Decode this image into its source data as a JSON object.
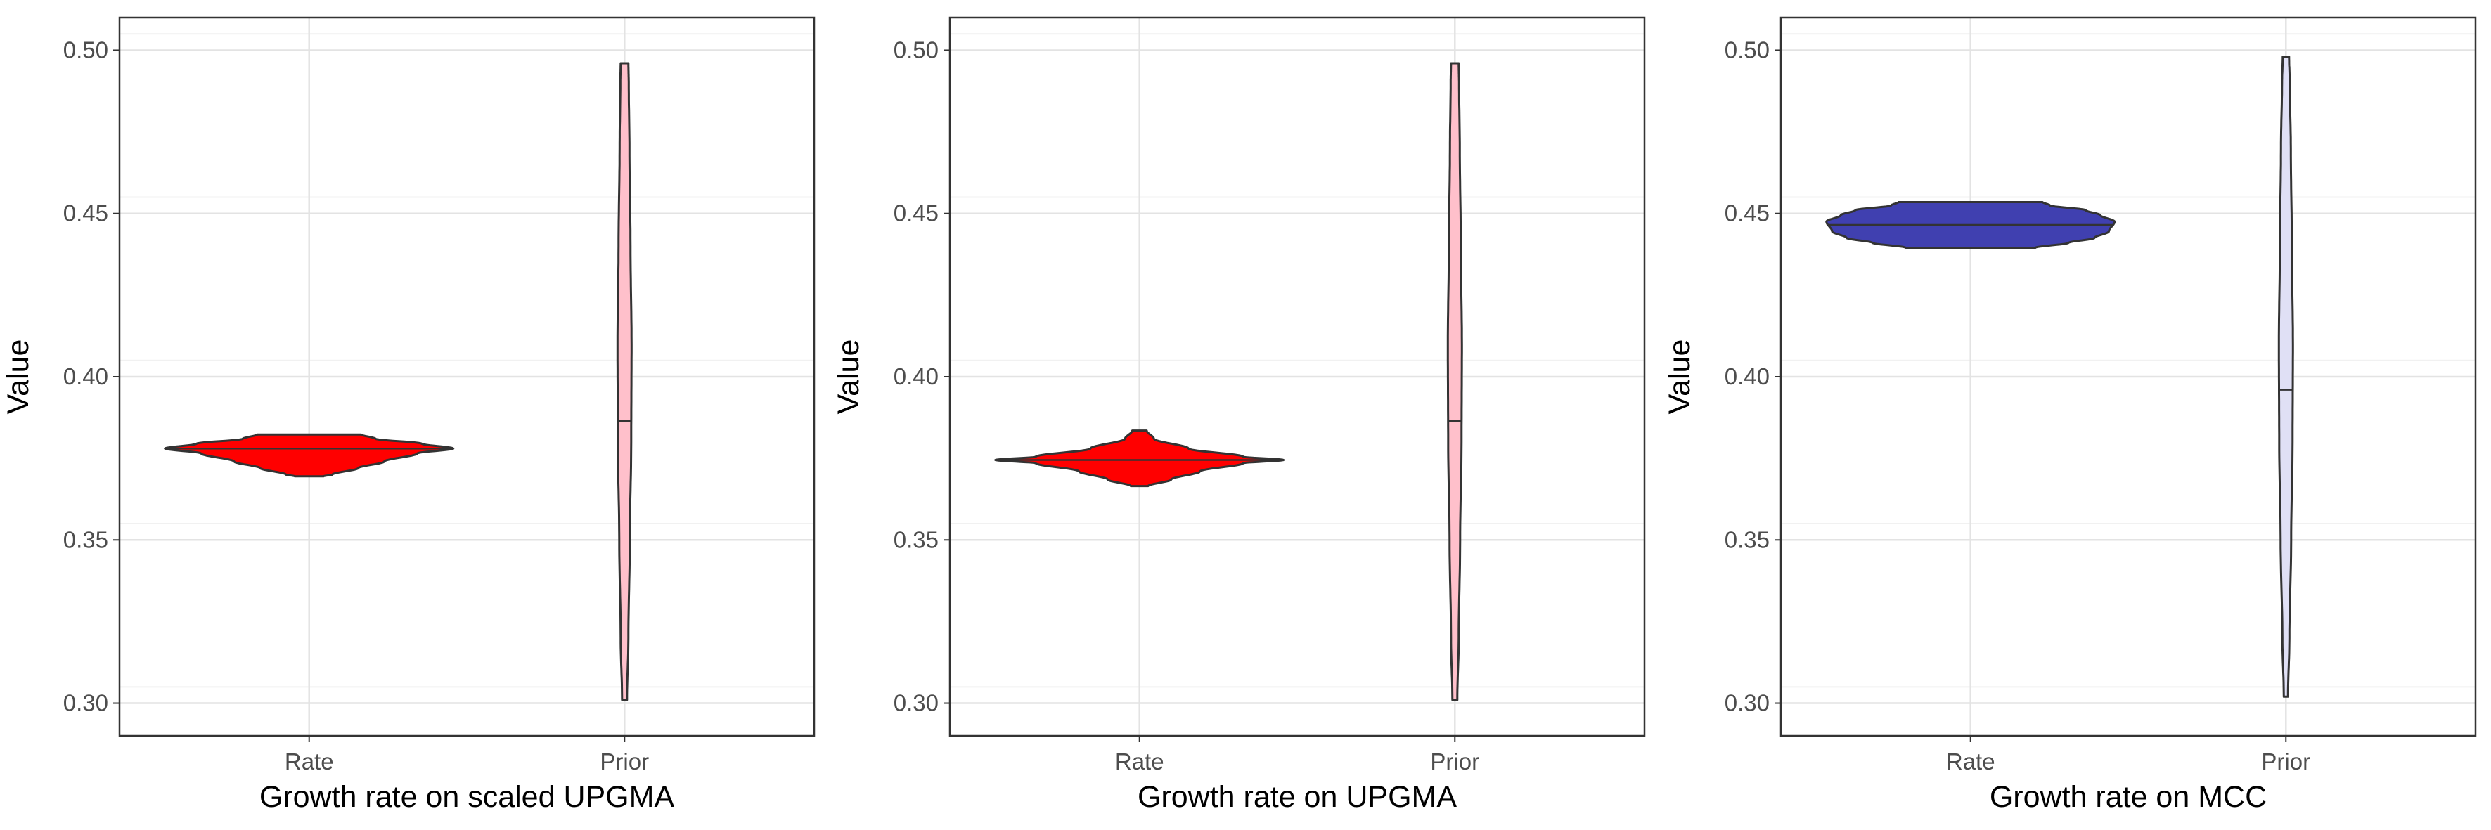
{
  "chart_data": [
    {
      "type": "violin",
      "xlabel": "Growth rate on scaled UPGMA",
      "ylabel": "Value",
      "ylim": [
        0.29,
        0.51
      ],
      "yticks": [
        "0.30",
        "0.35",
        "0.40",
        "0.45",
        "0.50"
      ],
      "grid": true,
      "categories": [
        "Rate",
        "Prior"
      ],
      "violins": [
        {
          "category": "Rate",
          "color": "#ff0000",
          "min": 0.3695,
          "max": 0.3823,
          "median": 0.378,
          "profile": [
            [
              0.3695,
              0.1
            ],
            [
              0.37,
              0.16
            ],
            [
              0.372,
              0.34
            ],
            [
              0.374,
              0.52
            ],
            [
              0.3765,
              0.75
            ],
            [
              0.378,
              1.0
            ],
            [
              0.3795,
              0.78
            ],
            [
              0.381,
              0.46
            ],
            [
              0.3823,
              0.36
            ]
          ]
        },
        {
          "category": "Prior",
          "color": "#ffc0cb",
          "min": 0.301,
          "max": 0.496,
          "median": 0.3865,
          "profile": [
            [
              0.301,
              0.35
            ],
            [
              0.32,
              0.55
            ],
            [
              0.35,
              0.75
            ],
            [
              0.38,
              0.95
            ],
            [
              0.41,
              1.0
            ],
            [
              0.44,
              0.85
            ],
            [
              0.47,
              0.7
            ],
            [
              0.49,
              0.6
            ],
            [
              0.496,
              0.55
            ]
          ]
        }
      ]
    },
    {
      "type": "violin",
      "xlabel": "Growth rate on UPGMA",
      "ylabel": "Value",
      "ylim": [
        0.29,
        0.51
      ],
      "yticks": [
        "0.30",
        "0.35",
        "0.40",
        "0.45",
        "0.50"
      ],
      "grid": true,
      "categories": [
        "Rate",
        "Prior"
      ],
      "violins": [
        {
          "category": "Rate",
          "color": "#ff0000",
          "min": 0.3665,
          "max": 0.3835,
          "median": 0.3745,
          "profile": [
            [
              0.3665,
              0.06
            ],
            [
              0.3685,
              0.22
            ],
            [
              0.371,
              0.42
            ],
            [
              0.3735,
              0.72
            ],
            [
              0.3745,
              1.0
            ],
            [
              0.3755,
              0.72
            ],
            [
              0.378,
              0.34
            ],
            [
              0.381,
              0.1
            ],
            [
              0.3835,
              0.05
            ]
          ]
        },
        {
          "category": "Prior",
          "color": "#ffc0cb",
          "min": 0.301,
          "max": 0.496,
          "median": 0.3865,
          "profile": [
            [
              0.301,
              0.35
            ],
            [
              0.32,
              0.55
            ],
            [
              0.35,
              0.75
            ],
            [
              0.38,
              0.95
            ],
            [
              0.41,
              1.0
            ],
            [
              0.44,
              0.85
            ],
            [
              0.47,
              0.7
            ],
            [
              0.49,
              0.6
            ],
            [
              0.496,
              0.55
            ]
          ]
        }
      ]
    },
    {
      "type": "violin",
      "xlabel": "Growth rate on MCC",
      "ylabel": "Value",
      "ylim": [
        0.29,
        0.51
      ],
      "yticks": [
        "0.30",
        "0.35",
        "0.40",
        "0.45",
        "0.50"
      ],
      "grid": true,
      "categories": [
        "Rate",
        "Prior"
      ],
      "violins": [
        {
          "category": "Rate",
          "color": "#4040b0",
          "min": 0.4395,
          "max": 0.4535,
          "median": 0.4465,
          "profile": [
            [
              0.4395,
              0.45
            ],
            [
              0.441,
              0.68
            ],
            [
              0.4425,
              0.86
            ],
            [
              0.4445,
              0.96
            ],
            [
              0.4475,
              1.0
            ],
            [
              0.4495,
              0.9
            ],
            [
              0.451,
              0.8
            ],
            [
              0.4525,
              0.55
            ],
            [
              0.4535,
              0.5
            ]
          ]
        },
        {
          "category": "Prior",
          "color": "#e0e0f5",
          "min": 0.302,
          "max": 0.498,
          "median": 0.396,
          "profile": [
            [
              0.302,
              0.3
            ],
            [
              0.32,
              0.5
            ],
            [
              0.35,
              0.75
            ],
            [
              0.38,
              0.95
            ],
            [
              0.41,
              1.0
            ],
            [
              0.44,
              0.85
            ],
            [
              0.47,
              0.7
            ],
            [
              0.49,
              0.55
            ],
            [
              0.498,
              0.45
            ]
          ]
        }
      ]
    }
  ]
}
